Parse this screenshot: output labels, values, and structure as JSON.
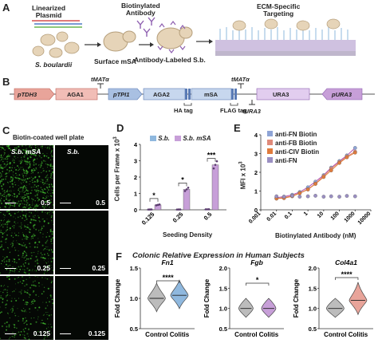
{
  "panels": {
    "A": "A",
    "B": "B",
    "C": "C",
    "D": "D",
    "E": "E",
    "F": "F"
  },
  "panelA": {
    "linearized_plasmid": "Linearized\nPlasmid",
    "s_boulardii": "S. boulardii",
    "surface_msa": "Surface mSA",
    "biotinylated_antibody": "Biotinylated\nAntibody",
    "antibody_labeled": "Antibody-Labeled S.b.",
    "ecm_targeting": "ECM-Specific\nTargeting"
  },
  "panelB": {
    "segments": [
      "pTDH3",
      "AGA1",
      "pTPI1",
      "AGA2",
      "mSA",
      "URA3",
      "pURA3"
    ],
    "tmata1": "tMATα",
    "tmata2": "tMATα",
    "ha_tag": "HA tag",
    "flag_tag": "FLAG tag",
    "tura3": "tURA3"
  },
  "panelC": {
    "title": "Biotin-coated well plate",
    "col1": "S.b. mSA",
    "col2": "S.b.",
    "rows": [
      "0.5",
      "0.25",
      "0.125"
    ]
  },
  "colors": {
    "sb": "#8fb8de",
    "sb_msa": "#c79fd8",
    "anti_fn_biotin": "#8ea4d6",
    "anti_fb_biotin": "#e08a7a",
    "anti_civ_biotin": "#e07b3c",
    "anti_fn": "#9a8fc2",
    "fit_line": "#b04fae",
    "green": "#3aa52a"
  },
  "chart_data": [
    {
      "type": "bar",
      "title": "",
      "xlabel": "Seeding Density",
      "ylabel": "Cells per Frame x 10",
      "ylabel_exp": "3",
      "categories": [
        "0.125",
        "0.25",
        "0.5"
      ],
      "ylim": [
        0,
        4
      ],
      "yticks": [
        "0",
        "1",
        "2",
        "3",
        "4"
      ],
      "series": [
        {
          "name": "S.b.",
          "values": [
            0.02,
            0.02,
            0.03
          ]
        },
        {
          "name": "S.b. mSA",
          "values": [
            0.3,
            1.25,
            2.75
          ]
        }
      ],
      "significance": [
        "*",
        "*",
        "***"
      ]
    },
    {
      "type": "scatter",
      "title": "",
      "xlabel": "Biotinylated Antibody (nM)",
      "ylabel": "MFI x 10",
      "ylabel_exp": "3",
      "xscale": "log",
      "xlim": [
        0.001,
        10000
      ],
      "xticks": [
        "0.001",
        "0.01",
        "0.1",
        "1",
        "10",
        "100",
        "1000",
        "10000"
      ],
      "ylim": [
        0,
        4
      ],
      "yticks": [
        "0",
        "1",
        "2",
        "3",
        "4"
      ],
      "legend_placement": "top-left",
      "series": [
        {
          "name": "anti-FN Biotin",
          "x": [
            0.01,
            0.03,
            0.1,
            0.3,
            1,
            3,
            10,
            30,
            100,
            300,
            1000
          ],
          "y": [
            0.65,
            0.7,
            0.8,
            0.95,
            1.2,
            1.5,
            1.85,
            2.25,
            2.6,
            2.9,
            3.3
          ]
        },
        {
          "name": "anti-FB Biotin",
          "x": [
            0.01,
            0.03,
            0.1,
            0.3,
            1,
            3,
            10,
            30,
            100,
            300,
            1000
          ],
          "y": [
            0.6,
            0.65,
            0.75,
            0.9,
            1.1,
            1.4,
            1.8,
            2.2,
            2.55,
            2.85,
            3.1
          ]
        },
        {
          "name": "anti-CIV Biotin",
          "x": [
            0.01,
            0.03,
            0.1,
            0.3,
            1,
            3,
            10,
            30,
            100,
            300,
            1000
          ],
          "y": [
            0.6,
            0.62,
            0.72,
            0.88,
            1.08,
            1.38,
            1.75,
            2.1,
            2.5,
            2.8,
            3.05
          ]
        },
        {
          "name": "anti-FN",
          "x": [
            0.01,
            0.03,
            0.1,
            0.3,
            1,
            3,
            10,
            30,
            100,
            300,
            1000
          ],
          "y": [
            0.72,
            0.7,
            0.75,
            0.7,
            0.72,
            0.75,
            0.7,
            0.72,
            0.7,
            0.74,
            0.72
          ]
        }
      ]
    },
    {
      "type": "violin",
      "title": "Fn1",
      "xlabel": "",
      "ylabel": "Fold Change",
      "categories": [
        "Control",
        "Colitis"
      ],
      "ylim": [
        0.5,
        1.5
      ],
      "yticks": [
        "0.5",
        "1.0",
        "1.5"
      ],
      "medians": [
        1.0,
        1.05
      ],
      "significance": "****"
    },
    {
      "type": "violin",
      "title": "Fgb",
      "xlabel": "",
      "ylabel": "Fold Change",
      "categories": [
        "Control",
        "Colitis"
      ],
      "ylim": [
        0.5,
        2.0
      ],
      "yticks": [
        "0.5",
        "1.0",
        "1.5",
        "2.0"
      ],
      "medians": [
        1.0,
        1.0
      ],
      "significance": "*"
    },
    {
      "type": "violin",
      "title": "Col4a1",
      "xlabel": "",
      "ylabel": "Fold Change",
      "categories": [
        "Control",
        "Colitis"
      ],
      "ylim": [
        0.5,
        2.0
      ],
      "yticks": [
        "0.5",
        "1.0",
        "1.5",
        "2.0"
      ],
      "medians": [
        1.0,
        1.2
      ],
      "significance": "****"
    }
  ],
  "panelF": {
    "title": "Colonic Relative Expression in Human Subjects"
  }
}
